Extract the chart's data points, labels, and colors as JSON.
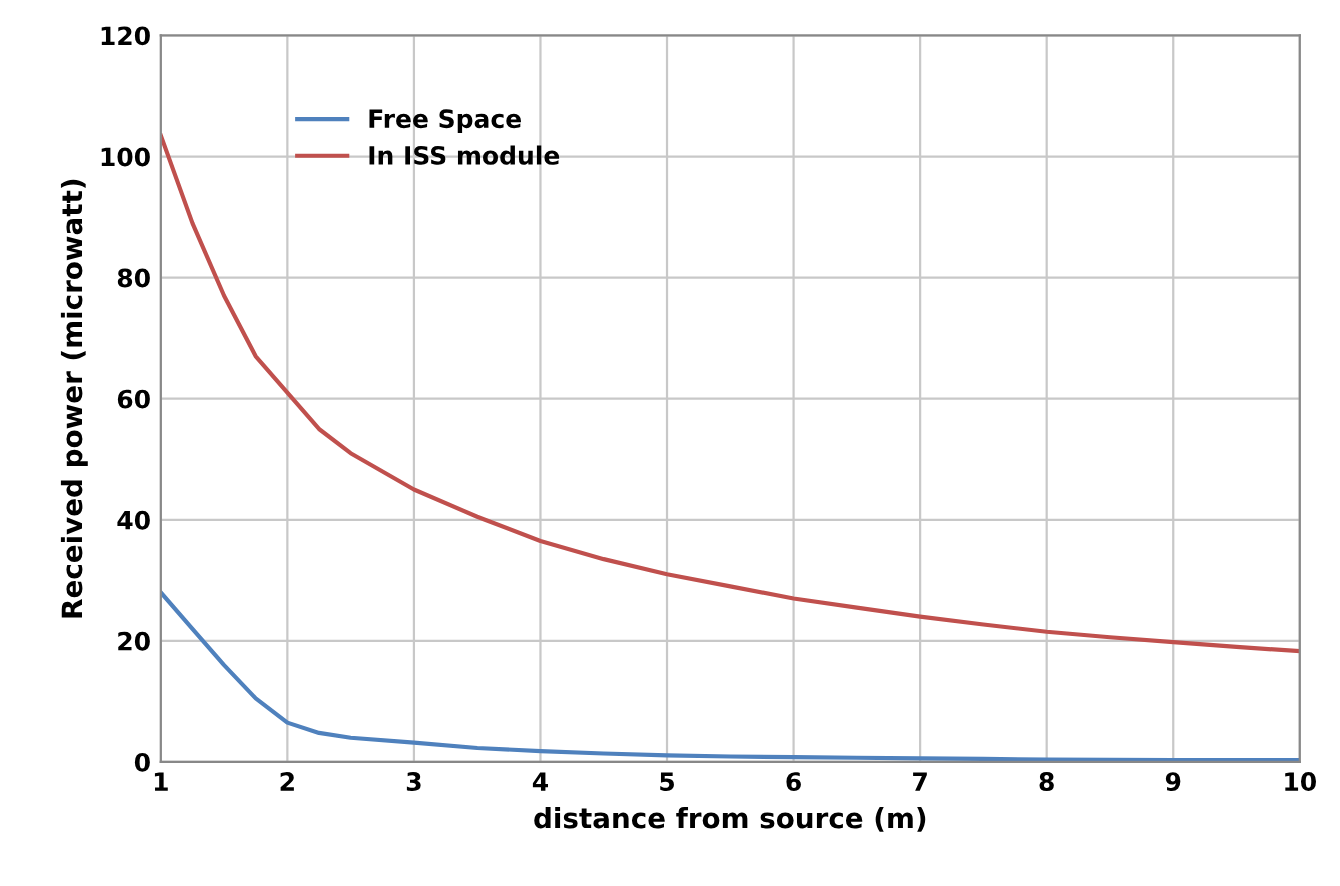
{
  "chart_data": {
    "type": "line",
    "xlabel": "distance from source (m)",
    "ylabel": "Received power (microwatt)",
    "x": [
      1,
      1.25,
      1.5,
      1.75,
      2,
      2.25,
      2.5,
      3,
      3.5,
      4,
      4.5,
      5,
      5.5,
      6,
      6.5,
      7,
      7.5,
      8,
      8.5,
      9,
      9.5,
      10
    ],
    "series": [
      {
        "name": "Free Space",
        "color": "#4f81bd",
        "values": [
          28,
          22,
          16,
          10.5,
          6.5,
          4.8,
          4,
          3.2,
          2.3,
          1.8,
          1.4,
          1.1,
          0.9,
          0.8,
          0.7,
          0.6,
          0.5,
          0.4,
          0.35,
          0.3,
          0.3,
          0.3
        ]
      },
      {
        "name": "In ISS module",
        "color": "#c0504d",
        "values": [
          103.5,
          89,
          77,
          67,
          61,
          55,
          51,
          45,
          40.5,
          36.5,
          33.5,
          31,
          29,
          27,
          25.5,
          24,
          22.7,
          21.5,
          20.6,
          19.8,
          19,
          18.3
        ]
      }
    ],
    "xlim": [
      1,
      10
    ],
    "xticks": [
      1,
      2,
      3,
      4,
      5,
      6,
      7,
      8,
      9,
      10
    ],
    "ylim": [
      0,
      120
    ],
    "yticks": [
      0,
      20,
      40,
      60,
      80,
      100,
      120
    ],
    "grid": true,
    "legend": "top left",
    "marker": "none",
    "line_style": "solid"
  }
}
